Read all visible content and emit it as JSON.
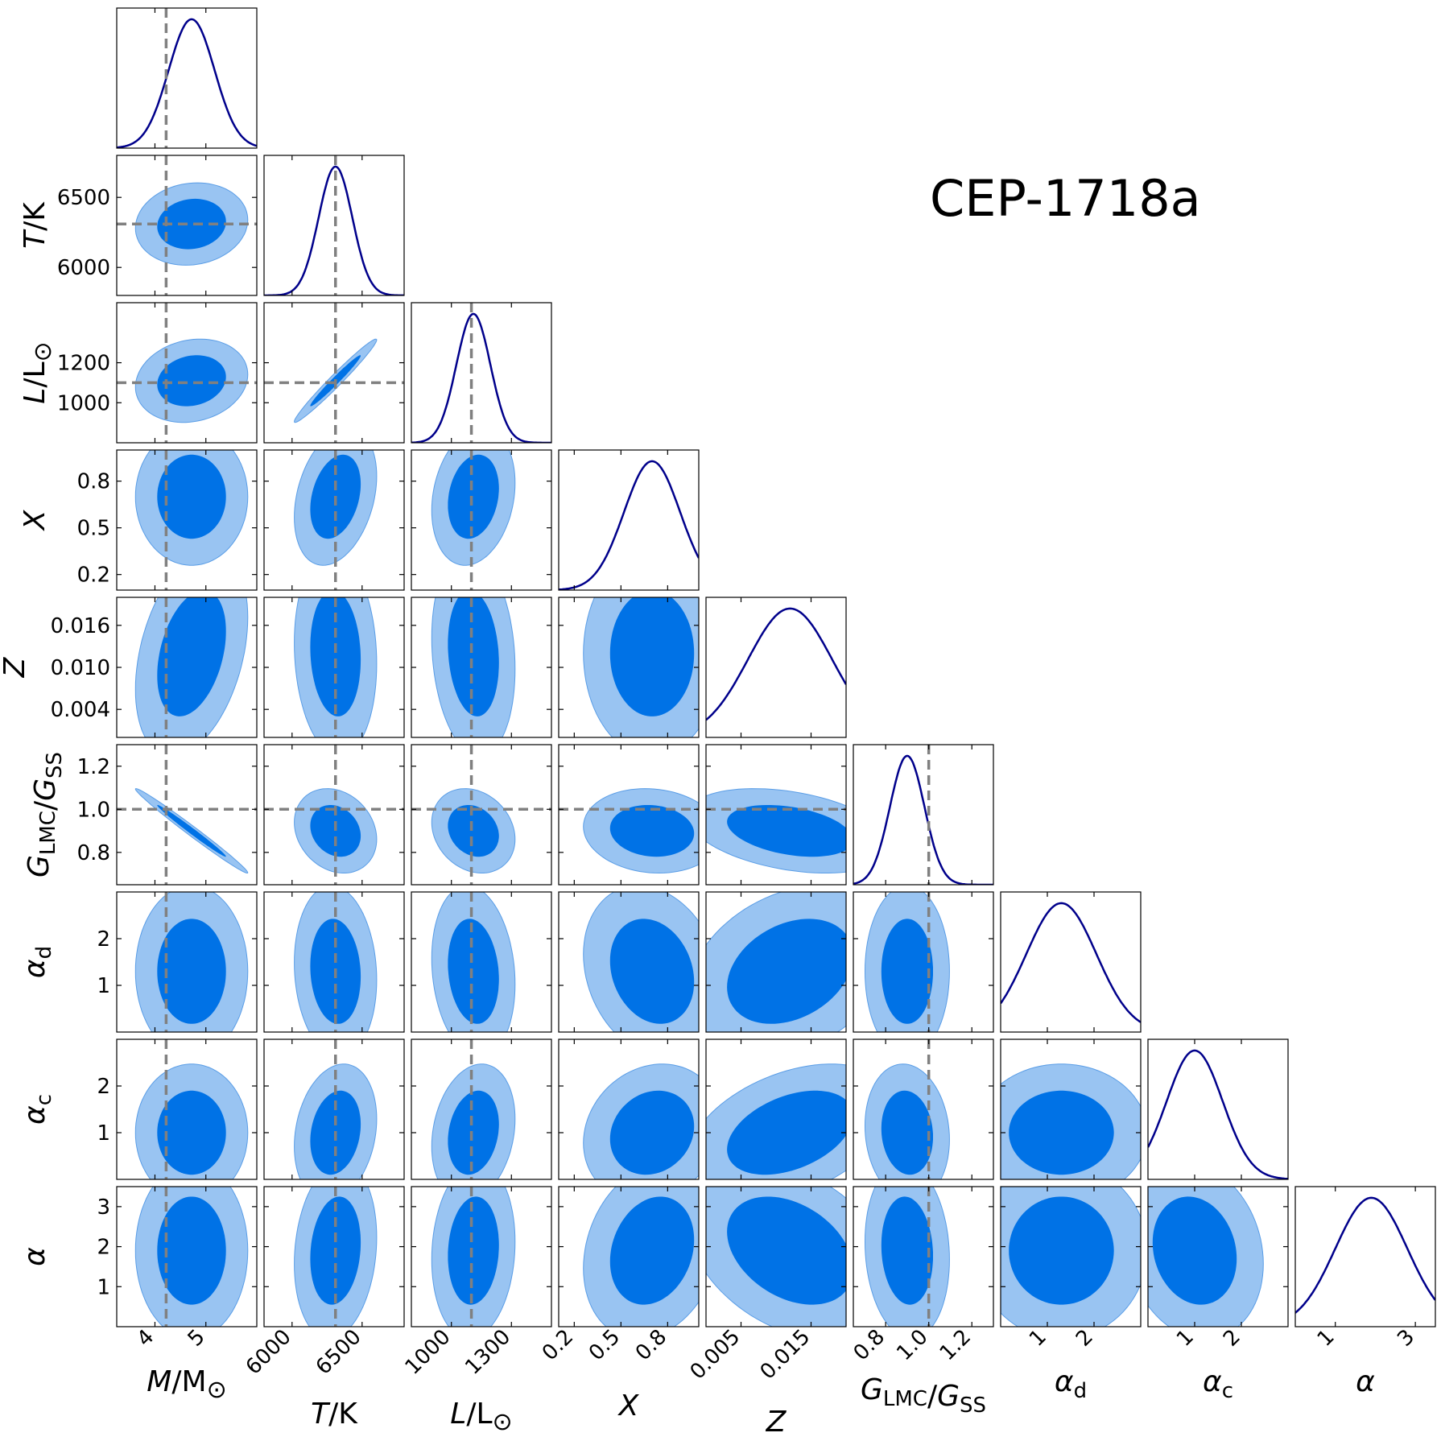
{
  "chart_data": {
    "type": "corner",
    "title": "CEP-1718a",
    "colors": {
      "line_1d": "#00008b",
      "contour_inner": "#0072e6",
      "contour_outer": "#99c4f2",
      "reference_line": "#808080"
    },
    "parameters": [
      {
        "id": "M",
        "label": "M/M",
        "sub": "",
        "suffix": "⊙",
        "range": [
          3.25,
          6.0
        ],
        "ticks": [
          4,
          5
        ],
        "tick_labels": [
          "4",
          "5"
        ],
        "truth": 4.22,
        "mean": 4.72,
        "sd": 0.45
      },
      {
        "id": "T",
        "label": "T/K",
        "sub": "",
        "suffix": "",
        "range": [
          5800,
          6800
        ],
        "ticks": [
          6000,
          6500
        ],
        "tick_labels": [
          "6000",
          "6500"
        ],
        "truth": 6310,
        "mean": 6310,
        "sd": 120
      },
      {
        "id": "L",
        "label": "L/L",
        "sub": "",
        "suffix": "⊙",
        "range": [
          800,
          1500
        ],
        "ticks": [
          1000,
          1300
        ],
        "tick_labels": [
          "1000",
          "1300"
        ],
        "tick_labels_y": [
          "1000",
          "1200"
        ],
        "ticks_y": [
          1000,
          1200
        ],
        "truth": 1100,
        "mean": 1110,
        "sd": 85
      },
      {
        "id": "X",
        "label": "X",
        "sub": "",
        "suffix": "",
        "range": [
          0.1,
          1.0
        ],
        "ticks": [
          0.2,
          0.5,
          0.8
        ],
        "tick_labels": [
          "0.2",
          "0.5",
          "0.8"
        ],
        "truth": null,
        "mean": 0.7,
        "sd": 0.18
      },
      {
        "id": "Z",
        "label": "Z",
        "sub": "",
        "suffix": "",
        "range": [
          0.0,
          0.02
        ],
        "ticks": [
          0.005,
          0.015
        ],
        "tick_labels": [
          "0.005",
          "0.015"
        ],
        "ticks_y": [
          0.004,
          0.01,
          0.016
        ],
        "tick_labels_y": [
          "0.004",
          "0.010",
          "0.016"
        ],
        "truth": null,
        "mean": 0.012,
        "sd": 0.006
      },
      {
        "id": "G",
        "label": "G",
        "sub": "LMC",
        "label2": "/G",
        "sub2": "SS",
        "suffix": "",
        "range": [
          0.65,
          1.3
        ],
        "ticks": [
          0.8,
          1.0,
          1.2
        ],
        "tick_labels": [
          "0.8",
          "1.0",
          "1.2"
        ],
        "ticks_y": [
          0.8,
          1.0,
          1.2
        ],
        "tick_labels_y": [
          "0.8",
          "1.0",
          "1.2"
        ],
        "truth": 1.0,
        "mean": 0.9,
        "sd": 0.08
      },
      {
        "id": "ad",
        "label": "α",
        "sub": "d",
        "suffix": "",
        "range": [
          0.0,
          3.0
        ],
        "ticks": [
          1,
          2
        ],
        "tick_labels": [
          "1",
          "2"
        ],
        "truth": null,
        "mean": 1.3,
        "sd": 0.75
      },
      {
        "id": "ac",
        "label": "α",
        "sub": "c",
        "suffix": "",
        "range": [
          0.0,
          3.0
        ],
        "ticks": [
          1,
          2
        ],
        "tick_labels": [
          "1",
          "2"
        ],
        "truth": null,
        "mean": 1.0,
        "sd": 0.6
      },
      {
        "id": "a",
        "label": "α",
        "sub": "",
        "suffix": "",
        "range": [
          0.0,
          3.5
        ],
        "ticks": [
          1,
          3
        ],
        "tick_labels": [
          "1",
          "3"
        ],
        "ticks_y": [
          1,
          2,
          3
        ],
        "tick_labels_y": [
          "1",
          "2",
          "3"
        ],
        "truth": null,
        "mean": 1.9,
        "sd": 0.9
      }
    ],
    "correlations": [
      [
        1,
        0.1,
        0.15,
        0,
        0.35,
        -0.99,
        0,
        0,
        0
      ],
      [
        0.1,
        1,
        0.98,
        0.3,
        -0.1,
        -0.2,
        -0.1,
        0.2,
        0.15
      ],
      [
        0.15,
        0.98,
        1,
        0.2,
        -0.15,
        -0.2,
        -0.15,
        0.2,
        0.1
      ],
      [
        0,
        0.3,
        0.2,
        1,
        0,
        -0.1,
        -0.2,
        0.15,
        0.2
      ],
      [
        0.35,
        -0.1,
        -0.15,
        0,
        1,
        -0.35,
        0.3,
        0.4,
        -0.35
      ],
      [
        -0.99,
        -0.2,
        -0.2,
        -0.1,
        -0.35,
        1,
        0,
        -0.1,
        -0.1
      ],
      [
        0,
        -0.1,
        -0.15,
        -0.2,
        0.3,
        0,
        1,
        0,
        0
      ],
      [
        0,
        0.2,
        0.2,
        0.15,
        0.4,
        -0.1,
        0,
        1,
        -0.15
      ],
      [
        0,
        0.15,
        0.1,
        0.2,
        -0.35,
        -0.1,
        0,
        -0.15,
        1
      ]
    ]
  }
}
